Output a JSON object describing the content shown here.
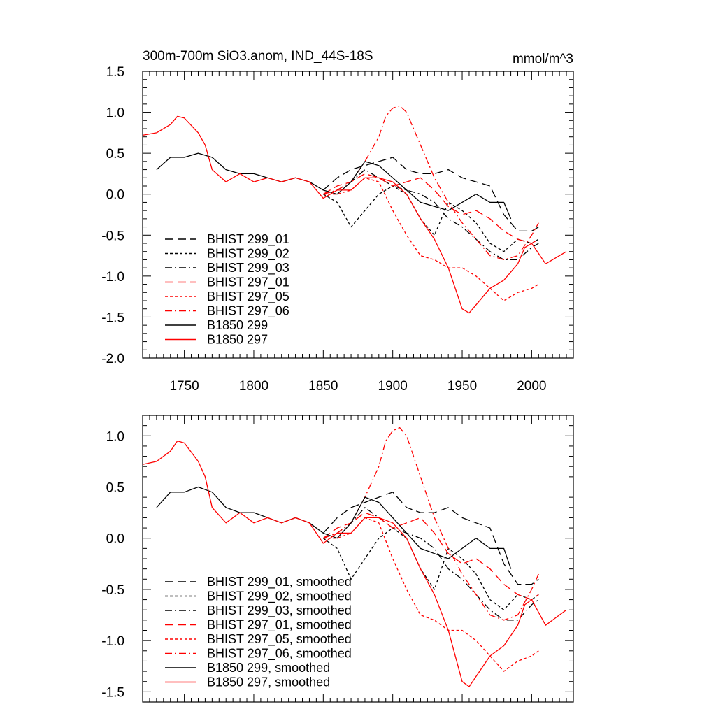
{
  "chart_data": [
    {
      "type": "line",
      "title": "300m-700m SiO3.anom, IND_44S-18S",
      "units": "mmol/m^3",
      "xlabel": "",
      "ylabel": "",
      "xlim": [
        1720,
        2030
      ],
      "ylim": [
        -2.0,
        1.5
      ],
      "xticks": [
        1750,
        1800,
        1850,
        1900,
        1950,
        2000
      ],
      "xtick_labels": [
        "1750",
        "1800",
        "1850",
        "1900",
        "1950",
        "2000"
      ],
      "yticks": [
        -2.0,
        -1.5,
        -1.0,
        -0.5,
        0.0,
        0.5,
        1.0,
        1.5
      ],
      "ytick_labels": [
        "-2.0",
        "-1.5",
        "-1.0",
        "-0.5",
        "0.0",
        "0.5",
        "1.0",
        "1.5"
      ],
      "grid": false,
      "legend_position": "bottom-left",
      "series": [
        {
          "name": "BHIST 299_01",
          "color": "#000000",
          "dash": "long-dash",
          "x": [
            1850,
            1860,
            1870,
            1880,
            1890,
            1900,
            1910,
            1920,
            1930,
            1940,
            1950,
            1960,
            1970,
            1980,
            1990,
            2000,
            2005
          ],
          "y": [
            0.05,
            0.2,
            0.3,
            0.35,
            0.4,
            0.45,
            0.3,
            0.25,
            0.25,
            0.3,
            0.2,
            0.15,
            0.1,
            -0.25,
            -0.45,
            -0.45,
            -0.4
          ]
        },
        {
          "name": "BHIST 299_02",
          "color": "#000000",
          "dash": "short-dash",
          "x": [
            1850,
            1860,
            1870,
            1880,
            1890,
            1900,
            1910,
            1920,
            1930,
            1940,
            1950,
            1960,
            1970,
            1980,
            1990,
            2000,
            2005
          ],
          "y": [
            0.0,
            -0.1,
            -0.4,
            -0.2,
            0.0,
            0.1,
            0.0,
            -0.3,
            -0.5,
            -0.1,
            -0.2,
            -0.35,
            -0.6,
            -0.7,
            -0.55,
            -0.6,
            -0.55
          ]
        },
        {
          "name": "BHIST 299_03",
          "color": "#000000",
          "dash": "dash-dot",
          "x": [
            1850,
            1860,
            1870,
            1880,
            1890,
            1900,
            1910,
            1920,
            1930,
            1940,
            1950,
            1960,
            1970,
            1980,
            1990,
            2000,
            2005
          ],
          "y": [
            0.0,
            0.05,
            0.15,
            0.3,
            0.2,
            0.1,
            0.05,
            0.0,
            -0.1,
            -0.3,
            -0.4,
            -0.55,
            -0.7,
            -0.8,
            -0.8,
            -0.65,
            -0.6
          ]
        },
        {
          "name": "BHIST 297_01",
          "color": "#ff0000",
          "dash": "long-dash",
          "x": [
            1850,
            1860,
            1870,
            1880,
            1890,
            1900,
            1910,
            1920,
            1930,
            1940,
            1950,
            1960,
            1970,
            1980,
            1990,
            2000,
            2005
          ],
          "y": [
            0.0,
            0.1,
            0.15,
            0.25,
            0.2,
            0.1,
            0.15,
            0.2,
            0.05,
            -0.15,
            -0.25,
            -0.2,
            -0.3,
            -0.45,
            -0.55,
            -0.6,
            -0.55
          ]
        },
        {
          "name": "BHIST 297_05",
          "color": "#ff0000",
          "dash": "short-dash",
          "x": [
            1850,
            1860,
            1870,
            1880,
            1890,
            1900,
            1910,
            1920,
            1930,
            1940,
            1950,
            1960,
            1970,
            1980,
            1990,
            2000,
            2005
          ],
          "y": [
            0.0,
            0.0,
            0.05,
            0.2,
            0.15,
            -0.2,
            -0.5,
            -0.75,
            -0.8,
            -0.9,
            -0.9,
            -1.0,
            -1.15,
            -1.3,
            -1.2,
            -1.15,
            -1.1
          ]
        },
        {
          "name": "BHIST 297_06",
          "color": "#ff0000",
          "dash": "dash-dot",
          "x": [
            1850,
            1860,
            1870,
            1880,
            1890,
            1895,
            1900,
            1905,
            1910,
            1920,
            1930,
            1940,
            1950,
            1960,
            1970,
            1980,
            1990,
            2000,
            2005
          ],
          "y": [
            0.0,
            0.05,
            0.15,
            0.4,
            0.7,
            0.95,
            1.05,
            1.08,
            1.0,
            0.6,
            0.2,
            -0.1,
            -0.35,
            -0.55,
            -0.75,
            -0.8,
            -0.75,
            -0.5,
            -0.35
          ]
        },
        {
          "name": "B1850 299",
          "color": "#000000",
          "dash": "solid",
          "x": [
            1730,
            1740,
            1750,
            1760,
            1770,
            1780,
            1790,
            1800,
            1810,
            1820,
            1830,
            1840,
            1850,
            1860,
            1870,
            1880,
            1890,
            1900,
            1910,
            1920,
            1930,
            1940,
            1950,
            1960,
            1970,
            1980,
            1985
          ],
          "y": [
            0.3,
            0.45,
            0.45,
            0.5,
            0.45,
            0.3,
            0.25,
            0.25,
            0.2,
            0.15,
            0.2,
            0.15,
            0.05,
            0.0,
            0.15,
            0.4,
            0.35,
            0.2,
            0.05,
            -0.1,
            -0.15,
            -0.2,
            -0.1,
            0.0,
            -0.1,
            -0.1,
            -0.3
          ]
        },
        {
          "name": "B1850 297",
          "color": "#ff0000",
          "dash": "solid",
          "x": [
            1720,
            1730,
            1740,
            1745,
            1750,
            1760,
            1765,
            1770,
            1780,
            1790,
            1800,
            1810,
            1820,
            1830,
            1840,
            1850,
            1860,
            1870,
            1880,
            1890,
            1900,
            1910,
            1920,
            1930,
            1940,
            1950,
            1955,
            1960,
            1970,
            1980,
            1990,
            1995,
            2000,
            2010,
            2020,
            2025
          ],
          "y": [
            0.72,
            0.75,
            0.85,
            0.95,
            0.93,
            0.75,
            0.6,
            0.3,
            0.15,
            0.25,
            0.15,
            0.2,
            0.15,
            0.2,
            0.15,
            -0.05,
            0.05,
            0.05,
            0.2,
            0.2,
            0.15,
            0.0,
            -0.3,
            -0.55,
            -0.9,
            -1.4,
            -1.45,
            -1.35,
            -1.15,
            -1.05,
            -0.85,
            -0.65,
            -0.6,
            -0.85,
            -0.75,
            -0.7
          ]
        }
      ]
    },
    {
      "type": "line",
      "title": "",
      "xlabel": "",
      "ylabel": "",
      "xlim": [
        1720,
        2030
      ],
      "ylim": [
        -1.6,
        1.2
      ],
      "xticks": [
        1750,
        1800,
        1850,
        1900,
        1950,
        2000
      ],
      "xtick_labels": [],
      "yticks": [
        -1.5,
        -1.0,
        -0.5,
        0.0,
        0.5,
        1.0
      ],
      "ytick_labels": [
        "-1.5",
        "-1.0",
        "-0.5",
        "0.0",
        "0.5",
        "1.0"
      ],
      "grid": false,
      "legend_position": "bottom-left",
      "series": [
        {
          "name": "BHIST 299_01, smoothed",
          "color": "#000000",
          "dash": "long-dash",
          "x": [
            1850,
            1860,
            1870,
            1880,
            1890,
            1900,
            1910,
            1920,
            1930,
            1940,
            1950,
            1960,
            1970,
            1980,
            1990,
            2000,
            2005
          ],
          "y": [
            0.05,
            0.2,
            0.3,
            0.35,
            0.4,
            0.45,
            0.3,
            0.25,
            0.25,
            0.3,
            0.2,
            0.15,
            0.1,
            -0.25,
            -0.45,
            -0.45,
            -0.4
          ]
        },
        {
          "name": "BHIST 299_02, smoothed",
          "color": "#000000",
          "dash": "short-dash",
          "x": [
            1850,
            1860,
            1870,
            1880,
            1890,
            1900,
            1910,
            1920,
            1930,
            1940,
            1950,
            1960,
            1970,
            1980,
            1990,
            2000,
            2005
          ],
          "y": [
            0.0,
            -0.1,
            -0.4,
            -0.2,
            0.0,
            0.1,
            0.0,
            -0.3,
            -0.5,
            -0.1,
            -0.2,
            -0.35,
            -0.6,
            -0.7,
            -0.55,
            -0.6,
            -0.55
          ]
        },
        {
          "name": "BHIST 299_03, smoothed",
          "color": "#000000",
          "dash": "dash-dot",
          "x": [
            1850,
            1860,
            1870,
            1880,
            1890,
            1900,
            1910,
            1920,
            1930,
            1940,
            1950,
            1960,
            1970,
            1980,
            1990,
            2000,
            2005
          ],
          "y": [
            0.0,
            0.05,
            0.15,
            0.3,
            0.2,
            0.1,
            0.05,
            0.0,
            -0.1,
            -0.3,
            -0.4,
            -0.55,
            -0.7,
            -0.8,
            -0.8,
            -0.65,
            -0.6
          ]
        },
        {
          "name": "BHIST 297_01, smoothed",
          "color": "#ff0000",
          "dash": "long-dash",
          "x": [
            1850,
            1860,
            1870,
            1880,
            1890,
            1900,
            1910,
            1920,
            1930,
            1940,
            1950,
            1960,
            1970,
            1980,
            1990,
            2000,
            2005
          ],
          "y": [
            0.0,
            0.1,
            0.15,
            0.25,
            0.2,
            0.1,
            0.15,
            0.2,
            0.05,
            -0.15,
            -0.25,
            -0.2,
            -0.3,
            -0.45,
            -0.55,
            -0.6,
            -0.55
          ]
        },
        {
          "name": "BHIST 297_05, smoothed",
          "color": "#ff0000",
          "dash": "short-dash",
          "x": [
            1850,
            1860,
            1870,
            1880,
            1890,
            1900,
            1910,
            1920,
            1930,
            1940,
            1950,
            1960,
            1970,
            1980,
            1990,
            2000,
            2005
          ],
          "y": [
            0.0,
            0.0,
            0.05,
            0.2,
            0.15,
            -0.2,
            -0.5,
            -0.75,
            -0.8,
            -0.9,
            -0.9,
            -1.0,
            -1.15,
            -1.3,
            -1.2,
            -1.15,
            -1.1
          ]
        },
        {
          "name": "BHIST 297_06, smoothed",
          "color": "#ff0000",
          "dash": "dash-dot",
          "x": [
            1850,
            1860,
            1870,
            1880,
            1890,
            1895,
            1900,
            1905,
            1910,
            1920,
            1930,
            1940,
            1950,
            1960,
            1970,
            1980,
            1990,
            2000,
            2005
          ],
          "y": [
            0.0,
            0.05,
            0.15,
            0.4,
            0.7,
            0.95,
            1.05,
            1.08,
            1.0,
            0.6,
            0.2,
            -0.1,
            -0.35,
            -0.55,
            -0.75,
            -0.8,
            -0.75,
            -0.5,
            -0.35
          ]
        },
        {
          "name": "B1850 299, smoothed",
          "color": "#000000",
          "dash": "solid",
          "x": [
            1730,
            1740,
            1750,
            1760,
            1770,
            1780,
            1790,
            1800,
            1810,
            1820,
            1830,
            1840,
            1850,
            1860,
            1870,
            1880,
            1890,
            1900,
            1910,
            1920,
            1930,
            1940,
            1950,
            1960,
            1970,
            1980,
            1985
          ],
          "y": [
            0.3,
            0.45,
            0.45,
            0.5,
            0.45,
            0.3,
            0.25,
            0.25,
            0.2,
            0.15,
            0.2,
            0.15,
            0.05,
            0.0,
            0.15,
            0.4,
            0.35,
            0.2,
            0.05,
            -0.1,
            -0.15,
            -0.2,
            -0.1,
            0.0,
            -0.1,
            -0.1,
            -0.3
          ]
        },
        {
          "name": "B1850 297, smoothed",
          "color": "#ff0000",
          "dash": "solid",
          "x": [
            1720,
            1730,
            1740,
            1745,
            1750,
            1760,
            1765,
            1770,
            1780,
            1790,
            1800,
            1810,
            1820,
            1830,
            1840,
            1850,
            1860,
            1870,
            1880,
            1890,
            1900,
            1910,
            1920,
            1930,
            1940,
            1950,
            1955,
            1960,
            1970,
            1980,
            1990,
            1995,
            2000,
            2010,
            2020,
            2025
          ],
          "y": [
            0.72,
            0.75,
            0.85,
            0.95,
            0.93,
            0.75,
            0.6,
            0.3,
            0.15,
            0.25,
            0.15,
            0.2,
            0.15,
            0.2,
            0.15,
            -0.05,
            0.05,
            0.05,
            0.2,
            0.2,
            0.15,
            0.0,
            -0.3,
            -0.55,
            -0.9,
            -1.4,
            -1.45,
            -1.35,
            -1.15,
            -1.05,
            -0.85,
            -0.65,
            -0.6,
            -0.85,
            -0.75,
            -0.7
          ]
        }
      ]
    }
  ]
}
